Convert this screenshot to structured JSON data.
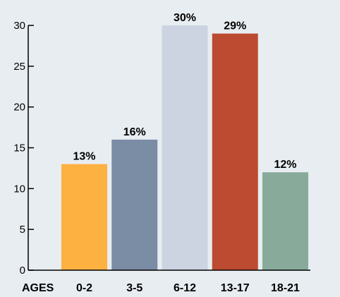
{
  "chart_data": {
    "type": "bar",
    "title": "",
    "xlabel": "AGES",
    "ylabel": "",
    "categories": [
      "0-2",
      "3-5",
      "6-12",
      "13-17",
      "18-21"
    ],
    "values": [
      13,
      16,
      30,
      29,
      12
    ],
    "data_labels": [
      "13%",
      "16%",
      "30%",
      "29%",
      "12%"
    ],
    "colors": [
      "#fdb140",
      "#7b8ca5",
      "#ccd4e2",
      "#bd4b31",
      "#88aa9b"
    ],
    "ylim": [
      0,
      30
    ],
    "yticks": [
      0,
      5,
      10,
      15,
      20,
      25,
      30
    ],
    "grid": false,
    "legend": "none"
  }
}
